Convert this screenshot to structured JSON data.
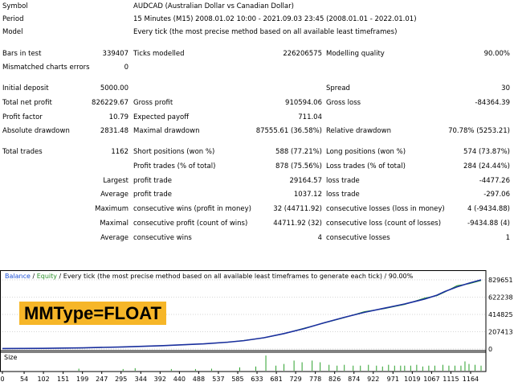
{
  "report": {
    "symbol_label": "Symbol",
    "symbol_value": "AUDCAD (Australian Dollar vs Canadian Dollar)",
    "period_label": "Period",
    "period_value": "15 Minutes (M15) 2008.01.02 10:00 - 2021.09.03 23:45 (2008.01.01 - 2022.01.01)",
    "model_label": "Model",
    "model_value": "Every tick (the most precise method based on all available least timeframes)",
    "bars_label": "Bars in test",
    "bars_value": "339407",
    "ticks_label": "Ticks modelled",
    "ticks_value": "226206575",
    "quality_label": "Modelling quality",
    "quality_value": "90.00%",
    "mismatch_label": "Mismatched charts errors",
    "mismatch_value": "0",
    "deposit_label": "Initial deposit",
    "deposit_value": "5000.00",
    "spread_label": "Spread",
    "spread_value": "30",
    "netprofit_label": "Total net profit",
    "netprofit_value": "826229.67",
    "grossprofit_label": "Gross profit",
    "grossprofit_value": "910594.06",
    "grossloss_label": "Gross loss",
    "grossloss_value": "-84364.39",
    "pf_label": "Profit factor",
    "pf_value": "10.79",
    "payoff_label": "Expected payoff",
    "payoff_value": "711.04",
    "absdd_label": "Absolute drawdown",
    "absdd_value": "2831.48",
    "maxdd_label": "Maximal drawdown",
    "maxdd_value": "87555.61 (36.58%)",
    "reldd_label": "Relative drawdown",
    "reldd_value": "70.78% (5253.21)",
    "trades_label": "Total trades",
    "trades_value": "1162",
    "short_label": "Short positions (won %)",
    "short_value": "588 (77.21%)",
    "long_label": "Long positions (won %)",
    "long_value": "574 (73.87%)",
    "pt_label": "Profit trades (% of total)",
    "pt_value": "878 (75.56%)",
    "lt_label": "Loss trades (% of total)",
    "lt_value": "284 (24.44%)",
    "largest_label": "Largest",
    "largest_pt_label": "profit trade",
    "largest_pt_value": "29164.57",
    "largest_lt_label": "loss trade",
    "largest_lt_value": "-4477.26",
    "average_label": "Average",
    "average_pt_label": "profit trade",
    "average_pt_value": "1037.12",
    "average_lt_label": "loss trade",
    "average_lt_value": "-297.06",
    "maximum_label": "Maximum",
    "max_cw_label": "consecutive wins (profit in money)",
    "max_cw_value": "32 (44711.92)",
    "max_cl_label": "consecutive losses (loss in money)",
    "max_cl_value": "4 (-9434.88)",
    "maximal_label": "Maximal",
    "mxl_cp_label": "consecutive profit (count of wins)",
    "mxl_cp_value": "44711.92 (32)",
    "mxl_cl_label": "consecutive loss (count of losses)",
    "mxl_cl_value": "-9434.88 (4)",
    "avg_label": "Average",
    "avg_cw_label": "consecutive wins",
    "avg_cw_value": "4",
    "avg_cl_label": "consecutive losses",
    "avg_cl_value": "1"
  },
  "chart_header": {
    "balance": "Balance",
    "sep1": " / ",
    "equity": "Equity",
    "rest": " / Every tick (the most precise method based on all available least timeframes to generate each tick) / 90.00%"
  },
  "overlay_label": "MMType=FLOAT",
  "colors": {
    "balance": "#1a2f9e",
    "equity": "#2ca02c",
    "label_bg": "#f6b628"
  },
  "chart_data": {
    "type": "line",
    "title": "",
    "y_ticks": [
      0,
      207413,
      414825,
      622238,
      829651
    ],
    "y_tick_labels": [
      "0",
      "207413",
      "414825",
      "622238",
      "829651"
    ],
    "ylim": [
      0,
      829651
    ],
    "x_ticks": [
      0,
      54,
      102,
      151,
      199,
      247,
      295,
      344,
      392,
      440,
      488,
      537,
      585,
      633,
      681,
      729,
      778,
      826,
      874,
      922,
      971,
      1019,
      1067,
      1115,
      1164
    ],
    "x_tick_labels": [
      "0",
      "54",
      "102",
      "151",
      "199",
      "247",
      "295",
      "344",
      "392",
      "440",
      "488",
      "537",
      "585",
      "633",
      "681",
      "729",
      "778",
      "826",
      "874",
      "922",
      "971",
      "1019",
      "1067",
      "1115",
      "1164"
    ],
    "xlim": [
      0,
      1200
    ],
    "series": [
      {
        "name": "Balance",
        "x": [
          0,
          100,
          200,
          300,
          400,
          500,
          560,
          600,
          650,
          700,
          750,
          800,
          850,
          900,
          950,
          1000,
          1050,
          1080,
          1100,
          1130,
          1160,
          1190
        ],
        "y": [
          5000,
          8000,
          14000,
          25000,
          40000,
          62000,
          82000,
          100000,
          135000,
          185000,
          245000,
          315000,
          380000,
          440000,
          490000,
          540000,
          600000,
          645000,
          690000,
          745000,
          790000,
          829651
        ]
      }
    ],
    "size_label": "Size",
    "volume_bars": [
      [
        190,
        0.12
      ],
      [
        300,
        0.1
      ],
      [
        330,
        0.15
      ],
      [
        420,
        0.1
      ],
      [
        480,
        0.1
      ],
      [
        520,
        0.12
      ],
      [
        590,
        0.2
      ],
      [
        630,
        0.25
      ],
      [
        655,
        0.9
      ],
      [
        680,
        0.3
      ],
      [
        700,
        0.4
      ],
      [
        725,
        0.6
      ],
      [
        745,
        0.5
      ],
      [
        770,
        0.6
      ],
      [
        790,
        0.5
      ],
      [
        812,
        0.35
      ],
      [
        832,
        0.3
      ],
      [
        850,
        0.35
      ],
      [
        872,
        0.3
      ],
      [
        890,
        0.3
      ],
      [
        910,
        0.35
      ],
      [
        930,
        0.3
      ],
      [
        945,
        0.25
      ],
      [
        960,
        0.35
      ],
      [
        975,
        0.3
      ],
      [
        990,
        0.3
      ],
      [
        1000,
        0.3
      ],
      [
        1015,
        0.3
      ],
      [
        1030,
        0.35
      ],
      [
        1045,
        0.25
      ],
      [
        1060,
        0.3
      ],
      [
        1075,
        0.3
      ],
      [
        1095,
        0.35
      ],
      [
        1110,
        0.3
      ],
      [
        1125,
        0.3
      ],
      [
        1140,
        0.3
      ],
      [
        1150,
        0.55
      ],
      [
        1160,
        0.4
      ],
      [
        1175,
        0.35
      ],
      [
        1190,
        0.3
      ]
    ]
  }
}
